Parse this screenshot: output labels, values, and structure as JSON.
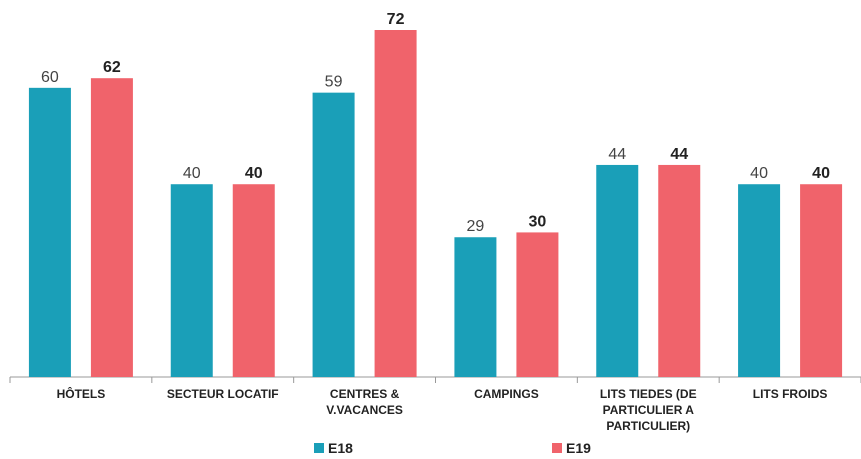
{
  "chart_data": {
    "type": "bar",
    "categories": [
      "HÔTELS",
      "SECTEUR LOCATIF",
      "CENTRES & V.VACANCES",
      "CAMPINGS",
      "LITS TIEDES (DE PARTICULIER A PARTICULIER)",
      "LITS FROIDS"
    ],
    "series": [
      {
        "name": "E18",
        "color": "#1a9fb8",
        "values": [
          60,
          40,
          59,
          29,
          44,
          40
        ]
      },
      {
        "name": "E19",
        "color": "#f0636b",
        "values": [
          62,
          40,
          72,
          30,
          44,
          40
        ]
      }
    ]
  }
}
